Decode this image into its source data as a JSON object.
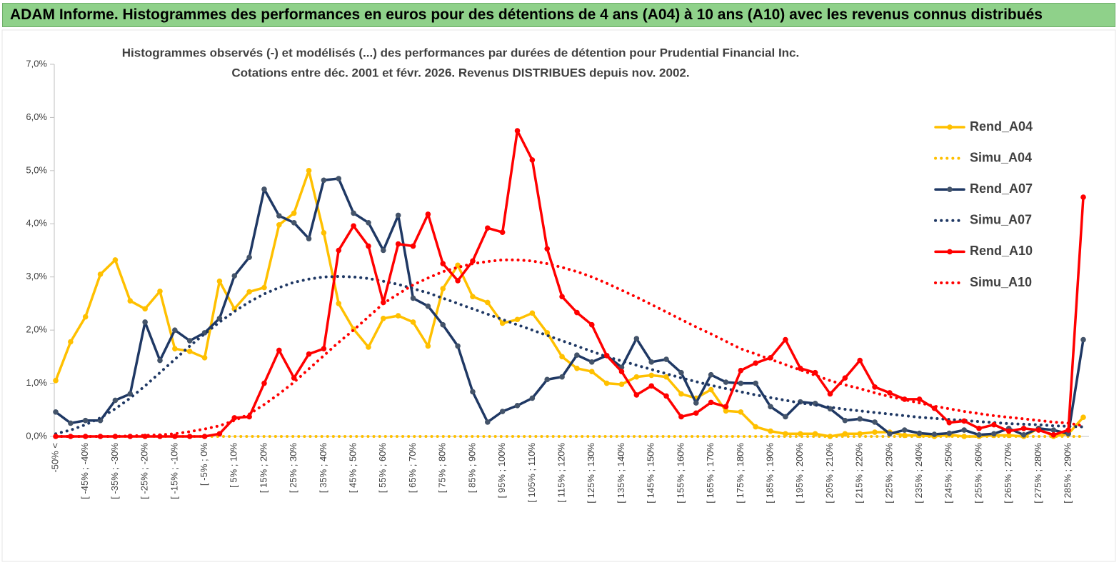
{
  "header": {
    "title": "ADAM Informe. Histogrammes des performances en euros pour des détentions de 4 ans (A04) à 10 ans (A10) avec les revenus connus distribués"
  },
  "chart_data": {
    "type": "line",
    "title": "Histogrammes observés (-) et modélisés (...) des performances par durées de détention pour Prudential Financial Inc.",
    "subtitle": "Cotations entre déc. 2001 et févr. 2026. Revenus DISTRIBUES depuis nov. 2002.",
    "categories": [
      "-50% <",
      null,
      "[ -45% ; -40%",
      null,
      "[ -35% ; -30%",
      null,
      "[ -25% ; -20%",
      null,
      "[ -15% ; -10%",
      null,
      "[ -5% ; 0%",
      null,
      "[ 5% ; 10%",
      null,
      "[ 15% ; 20%",
      null,
      "[ 25% ; 30%",
      null,
      "[ 35% ; 40%",
      null,
      "[ 45% ; 50%",
      null,
      "[ 55% ; 60%",
      null,
      "[ 65% ; 70%",
      null,
      "[ 75% ; 80%",
      null,
      "[ 85% ; 90%",
      null,
      "[ 95% ; 100%",
      null,
      "[ 105% ; 110%",
      null,
      "[ 115% ; 120%",
      null,
      "[ 125% ; 130%",
      null,
      "[ 135% ; 140%",
      null,
      "[ 145% ; 150%",
      null,
      "[ 155% ; 160%",
      null,
      "[ 165% ; 170%",
      null,
      "[ 175% ; 180%",
      null,
      "[ 185% ; 190%",
      null,
      "[ 195% ; 200%",
      null,
      "[ 205% ; 210%",
      null,
      "[ 215% ; 220%",
      null,
      "[ 225% ; 230%",
      null,
      "[ 235% ; 240%",
      null,
      "[ 245% ; 250%",
      null,
      "[ 255% ; 260%",
      null,
      "[ 265% ; 270%",
      null,
      "[ 275% ; 280%",
      null,
      "[ 285% ; 290%",
      null
    ],
    "ylim": [
      0,
      7
    ],
    "yticks": [
      {
        "value": 0,
        "label": "0,0%"
      },
      {
        "value": 1,
        "label": "1,0%"
      },
      {
        "value": 2,
        "label": "2,0%"
      },
      {
        "value": 3,
        "label": "3,0%"
      },
      {
        "value": 4,
        "label": "4,0%"
      },
      {
        "value": 5,
        "label": "5,0%"
      },
      {
        "value": 6,
        "label": "6,0%"
      },
      {
        "value": 7,
        "label": "7,0%"
      }
    ],
    "legend": "right",
    "series": [
      {
        "name": "Rend_A04",
        "color": "#ffc000",
        "style": "solid",
        "markers": true,
        "values": [
          1.05,
          1.78,
          2.25,
          3.05,
          3.32,
          2.55,
          2.4,
          2.73,
          1.65,
          1.6,
          1.48,
          2.92,
          2.4,
          2.72,
          2.8,
          3.98,
          4.2,
          5.0,
          3.83,
          2.5,
          2.02,
          1.68,
          2.22,
          2.27,
          2.15,
          1.7,
          2.78,
          3.22,
          2.63,
          2.52,
          2.13,
          2.2,
          2.32,
          1.95,
          1.5,
          1.28,
          1.22,
          1.0,
          0.98,
          1.12,
          1.15,
          1.12,
          0.8,
          0.72,
          0.88,
          0.48,
          0.46,
          0.18,
          0.1,
          0.05,
          0.05,
          0.05,
          0.0,
          0.05,
          0.05,
          0.08,
          0.08,
          0.02,
          0.02,
          0.0,
          0.03,
          0.0,
          0.0,
          0.02,
          0.02,
          0.0,
          0.15,
          0.0,
          0.05,
          0.36
        ]
      },
      {
        "name": "Simu_A04",
        "color": "#ffc000",
        "style": "dotted",
        "markers": false,
        "values": [
          0,
          0,
          0,
          0,
          0,
          0,
          0,
          0,
          0,
          0,
          0,
          0,
          0,
          0,
          0,
          0,
          0,
          0,
          0,
          0,
          0,
          0,
          0,
          0,
          0,
          0,
          0,
          0,
          0,
          0,
          0,
          0,
          0,
          0,
          0,
          0,
          0,
          0,
          0,
          0,
          0,
          0,
          0,
          0,
          0,
          0,
          0,
          0,
          0,
          0,
          0,
          0,
          0,
          0,
          0,
          0,
          0,
          0,
          0,
          0,
          0,
          0,
          0,
          0,
          0,
          0,
          0,
          0,
          0,
          0
        ]
      },
      {
        "name": "Rend_A07",
        "color": "#1f3864",
        "style": "solid",
        "markers": true,
        "values": [
          0.46,
          0.25,
          0.3,
          0.3,
          0.68,
          0.8,
          2.15,
          1.43,
          2.0,
          1.8,
          1.95,
          2.22,
          3.02,
          3.37,
          4.65,
          4.15,
          4.02,
          3.72,
          4.82,
          4.85,
          4.2,
          4.02,
          3.5,
          4.16,
          2.6,
          2.45,
          2.1,
          1.7,
          0.84,
          0.27,
          0.47,
          0.58,
          0.72,
          1.07,
          1.12,
          1.53,
          1.4,
          1.52,
          1.3,
          1.84,
          1.4,
          1.45,
          1.2,
          0.63,
          1.16,
          1.02,
          1.0,
          1.0,
          0.56,
          0.37,
          0.65,
          0.62,
          0.52,
          0.3,
          0.33,
          0.27,
          0.05,
          0.12,
          0.06,
          0.04,
          0.06,
          0.12,
          0.03,
          0.05,
          0.15,
          0.03,
          0.15,
          0.12,
          0.05,
          1.82
        ]
      },
      {
        "name": "Simu_A07",
        "color": "#1f3864",
        "style": "dotted",
        "markers": false,
        "values": [
          0.05,
          0.12,
          0.22,
          0.35,
          0.52,
          0.72,
          0.95,
          1.2,
          1.45,
          1.7,
          1.93,
          2.15,
          2.35,
          2.53,
          2.68,
          2.8,
          2.9,
          2.96,
          3.0,
          3.01,
          3.0,
          2.97,
          2.92,
          2.86,
          2.78,
          2.7,
          2.6,
          2.5,
          2.4,
          2.3,
          2.2,
          2.1,
          2.0,
          1.9,
          1.8,
          1.7,
          1.6,
          1.5,
          1.42,
          1.34,
          1.26,
          1.18,
          1.1,
          1.03,
          0.96,
          0.9,
          0.84,
          0.78,
          0.73,
          0.68,
          0.63,
          0.59,
          0.55,
          0.51,
          0.48,
          0.45,
          0.42,
          0.39,
          0.36,
          0.34,
          0.32,
          0.3,
          0.28,
          0.26,
          0.24,
          0.23,
          0.22,
          0.2,
          0.19,
          0.18
        ]
      },
      {
        "name": "Rend_A10",
        "color": "#ff0000",
        "style": "solid",
        "markers": true,
        "values": [
          0,
          0,
          0,
          0,
          0,
          0,
          0,
          0,
          0,
          0,
          0,
          0.05,
          0.35,
          0.37,
          1.0,
          1.62,
          1.1,
          1.55,
          1.65,
          3.5,
          3.96,
          3.58,
          2.52,
          3.62,
          3.58,
          4.18,
          3.25,
          2.93,
          3.3,
          3.92,
          3.84,
          5.75,
          5.2,
          3.53,
          2.63,
          2.33,
          2.1,
          1.52,
          1.22,
          0.78,
          0.95,
          0.76,
          0.37,
          0.44,
          0.64,
          0.56,
          1.24,
          1.38,
          1.48,
          1.82,
          1.28,
          1.2,
          0.8,
          1.1,
          1.43,
          0.93,
          0.82,
          0.7,
          0.7,
          0.53,
          0.26,
          0.29,
          0.15,
          0.22,
          0.1,
          0.15,
          0.12,
          0.03,
          0.12,
          4.5
        ]
      },
      {
        "name": "Simu_A10",
        "color": "#ff0000",
        "style": "dotted",
        "markers": false,
        "values": [
          0,
          0,
          0,
          0,
          0,
          0.01,
          0.02,
          0.03,
          0.05,
          0.09,
          0.14,
          0.2,
          0.3,
          0.42,
          0.6,
          0.8,
          1.02,
          1.27,
          1.52,
          1.77,
          2.0,
          2.25,
          2.5,
          2.68,
          2.85,
          2.98,
          3.1,
          3.18,
          3.25,
          3.29,
          3.32,
          3.32,
          3.3,
          3.25,
          3.18,
          3.1,
          3.0,
          2.88,
          2.75,
          2.62,
          2.48,
          2.34,
          2.2,
          2.06,
          1.93,
          1.79,
          1.65,
          1.55,
          1.45,
          1.35,
          1.25,
          1.15,
          1.05,
          0.97,
          0.9,
          0.82,
          0.75,
          0.69,
          0.63,
          0.57,
          0.52,
          0.47,
          0.43,
          0.39,
          0.36,
          0.33,
          0.3,
          0.27,
          0.25,
          0.2
        ]
      }
    ]
  }
}
